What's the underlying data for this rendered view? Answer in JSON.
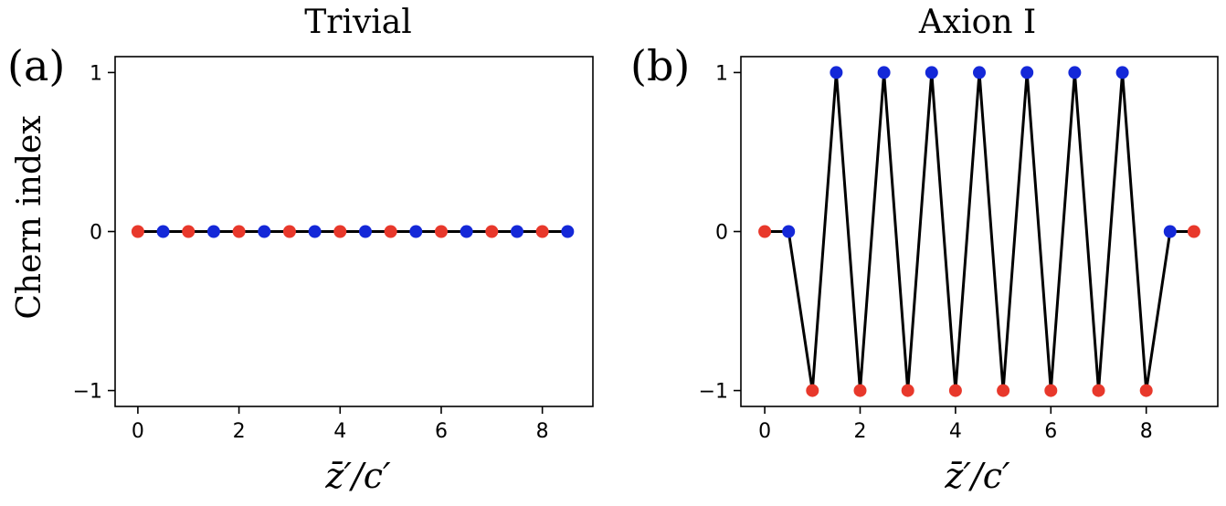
{
  "chart_data": [
    {
      "type": "line",
      "panel_label": "(a)",
      "title": "Trivial",
      "ylabel": "Chern index",
      "xlabel": "z̄′/c′",
      "xlim": [
        -0.45,
        9.0
      ],
      "ylim": [
        -1.1,
        1.1
      ],
      "xticks": [
        0,
        2,
        4,
        6,
        8
      ],
      "yticks": [
        -1,
        0,
        1
      ],
      "xtick_labels": [
        "0",
        "2",
        "4",
        "6",
        "8"
      ],
      "ytick_labels": [
        "−1",
        "0",
        "1"
      ],
      "grid": false,
      "line_color": "#000000",
      "points": [
        {
          "x": 0,
          "y": 0,
          "color": "#e8382b"
        },
        {
          "x": 0.5,
          "y": 0,
          "color": "#1428d8"
        },
        {
          "x": 1,
          "y": 0,
          "color": "#e8382b"
        },
        {
          "x": 1.5,
          "y": 0,
          "color": "#1428d8"
        },
        {
          "x": 2,
          "y": 0,
          "color": "#e8382b"
        },
        {
          "x": 2.5,
          "y": 0,
          "color": "#1428d8"
        },
        {
          "x": 3,
          "y": 0,
          "color": "#e8382b"
        },
        {
          "x": 3.5,
          "y": 0,
          "color": "#1428d8"
        },
        {
          "x": 4,
          "y": 0,
          "color": "#e8382b"
        },
        {
          "x": 4.5,
          "y": 0,
          "color": "#1428d8"
        },
        {
          "x": 5,
          "y": 0,
          "color": "#e8382b"
        },
        {
          "x": 5.5,
          "y": 0,
          "color": "#1428d8"
        },
        {
          "x": 6,
          "y": 0,
          "color": "#e8382b"
        },
        {
          "x": 6.5,
          "y": 0,
          "color": "#1428d8"
        },
        {
          "x": 7,
          "y": 0,
          "color": "#e8382b"
        },
        {
          "x": 7.5,
          "y": 0,
          "color": "#1428d8"
        },
        {
          "x": 8,
          "y": 0,
          "color": "#e8382b"
        },
        {
          "x": 8.5,
          "y": 0,
          "color": "#1428d8"
        }
      ]
    },
    {
      "type": "line",
      "panel_label": "(b)",
      "title": "Axion I",
      "ylabel": "",
      "xlabel": "z̄′/c′",
      "xlim": [
        -0.5,
        9.5
      ],
      "ylim": [
        -1.1,
        1.1
      ],
      "xticks": [
        0,
        2,
        4,
        6,
        8
      ],
      "yticks": [
        -1,
        0,
        1
      ],
      "xtick_labels": [
        "0",
        "2",
        "4",
        "6",
        "8"
      ],
      "ytick_labels": [
        "−1",
        "0",
        "1"
      ],
      "grid": false,
      "line_color": "#000000",
      "points": [
        {
          "x": 0,
          "y": 0,
          "color": "#e8382b"
        },
        {
          "x": 0.5,
          "y": 0,
          "color": "#1428d8"
        },
        {
          "x": 1,
          "y": -1,
          "color": "#e8382b"
        },
        {
          "x": 1.5,
          "y": 1,
          "color": "#1428d8"
        },
        {
          "x": 2,
          "y": -1,
          "color": "#e8382b"
        },
        {
          "x": 2.5,
          "y": 1,
          "color": "#1428d8"
        },
        {
          "x": 3,
          "y": -1,
          "color": "#e8382b"
        },
        {
          "x": 3.5,
          "y": 1,
          "color": "#1428d8"
        },
        {
          "x": 4,
          "y": -1,
          "color": "#e8382b"
        },
        {
          "x": 4.5,
          "y": 1,
          "color": "#1428d8"
        },
        {
          "x": 5,
          "y": -1,
          "color": "#e8382b"
        },
        {
          "x": 5.5,
          "y": 1,
          "color": "#1428d8"
        },
        {
          "x": 6,
          "y": -1,
          "color": "#e8382b"
        },
        {
          "x": 6.5,
          "y": 1,
          "color": "#1428d8"
        },
        {
          "x": 7,
          "y": -1,
          "color": "#e8382b"
        },
        {
          "x": 7.5,
          "y": 1,
          "color": "#1428d8"
        },
        {
          "x": 8,
          "y": -1,
          "color": "#e8382b"
        },
        {
          "x": 8.5,
          "y": 0,
          "color": "#1428d8"
        },
        {
          "x": 9,
          "y": 0,
          "color": "#e8382b"
        }
      ]
    }
  ]
}
